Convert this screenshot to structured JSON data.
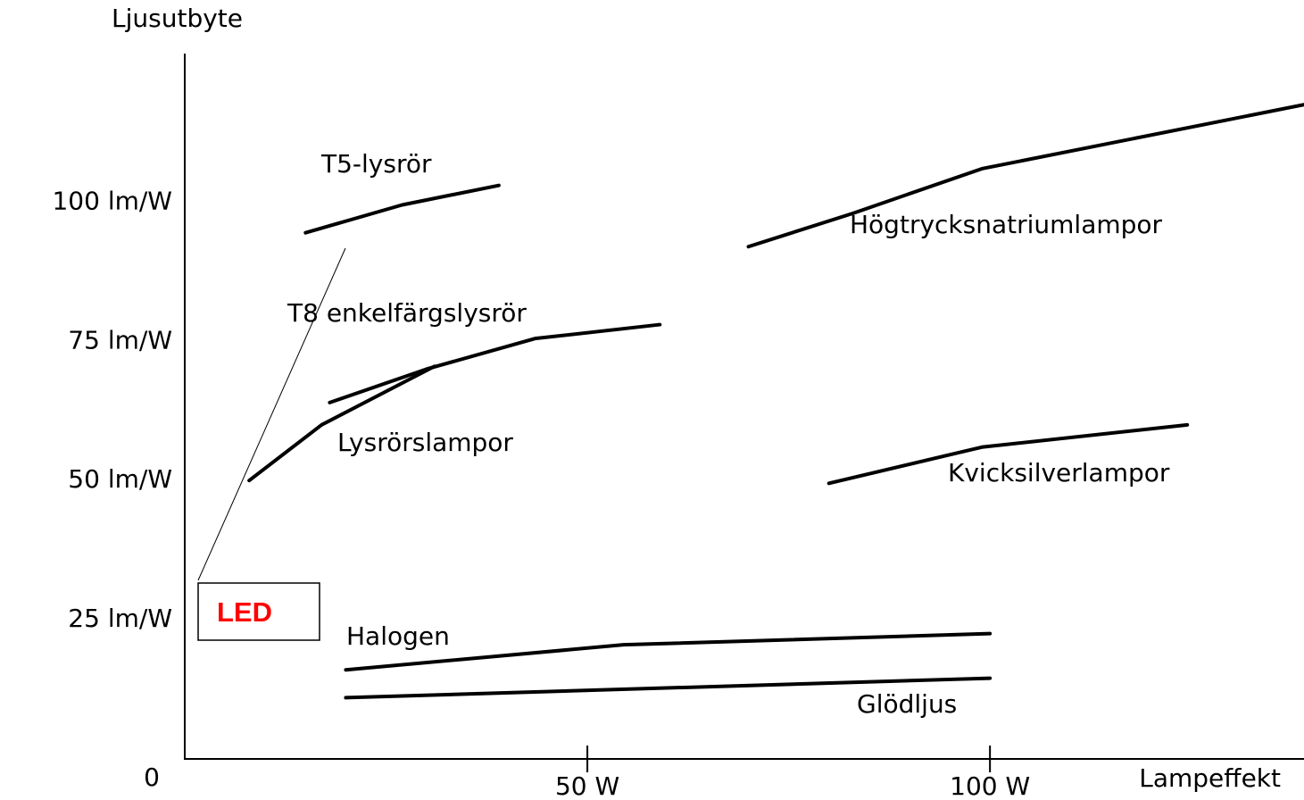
{
  "chart_data": {
    "type": "line",
    "y_label": "Ljusutbyte",
    "x_label": "Lampeffekt",
    "xlim": [
      0,
      139
    ],
    "ylim": [
      0,
      127
    ],
    "xticks": [
      0,
      {
        "value": 50,
        "label": "50 W"
      },
      {
        "value": 100,
        "label": "100 W"
      }
    ],
    "yticks": [
      {
        "value": 25,
        "label": "25 lm/W"
      },
      {
        "value": 50,
        "label": "50 lm/W"
      },
      {
        "value": 75,
        "label": "75 lm/W"
      },
      {
        "value": 100,
        "label": "100 lm/W"
      }
    ],
    "grid": false,
    "series": [
      {
        "name": "T5-lysrör",
        "color": "#000000",
        "x": [
          15,
          27,
          39
        ],
        "values": [
          94.5,
          99.5,
          103
        ]
      },
      {
        "name": "Högtrycksnatriumlampor",
        "color": "#000000",
        "x": [
          70,
          83,
          99,
          139
        ],
        "values": [
          92,
          98,
          106,
          117.5
        ]
      },
      {
        "name": "T8 enkelfärgslysrör",
        "color": "#000000",
        "x": [
          18,
          30,
          43.5,
          59
        ],
        "values": [
          64,
          70,
          75.5,
          78
        ]
      },
      {
        "name": "Lysrörslampor",
        "color": "#000000",
        "x": [
          8,
          17,
          31
        ],
        "values": [
          50,
          60,
          70.5
        ]
      },
      {
        "name": "Kvicksilverlampor",
        "color": "#000000",
        "x": [
          80,
          99,
          124.5
        ],
        "values": [
          49.5,
          56,
          60
        ]
      },
      {
        "name": "Halogen",
        "color": "#000000",
        "x": [
          20,
          54.5,
          100
        ],
        "values": [
          16,
          20.5,
          22.5
        ]
      },
      {
        "name": "Glödljus",
        "color": "#000000",
        "x": [
          20,
          100
        ],
        "values": [
          11,
          14.5
        ]
      }
    ],
    "annotations": [
      {
        "text": "LED",
        "color": "#ff0000"
      }
    ]
  }
}
